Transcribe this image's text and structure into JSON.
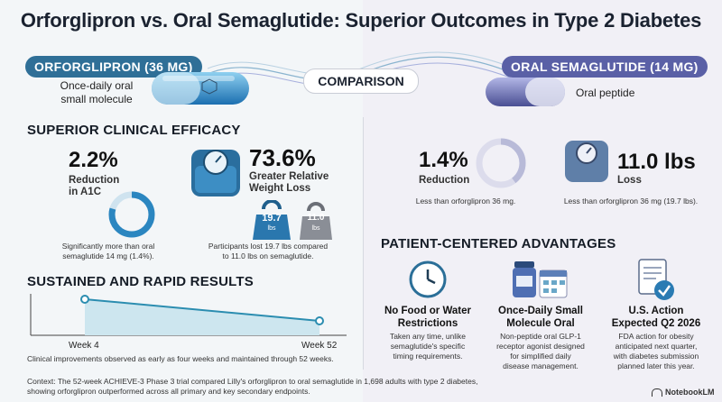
{
  "title": "Orforglipron vs. Oral Semaglutide: Superior Outcomes in Type 2 Diabetes",
  "left_drug": {
    "name": "ORFORGLIPRON (36 MG)",
    "desc_line1": "Once-daily oral",
    "desc_line2": "small molecule",
    "color": "#2f6f97"
  },
  "comparison_label": "COMPARISON",
  "right_drug": {
    "name": "ORAL SEMAGLUTIDE (14 MG)",
    "desc": "Oral peptide",
    "color": "#5a60a6"
  },
  "efficacy": {
    "heading": "SUPERIOR CLINICAL EFFICACY",
    "a1c": {
      "value": "2.2%",
      "label_line1": "Reduction",
      "label_line2": "in A1C",
      "note_line1": "Significantly more than oral",
      "note_line2": "semaglutide 14 mg (1.4%)."
    },
    "weight": {
      "value": "73.6%",
      "label_line1": "Greater Relative",
      "label_line2": "Weight Loss",
      "weight_a": "19.7",
      "weight_b": "11.0",
      "unit": "lbs",
      "note_line1": "Participants lost 19.7 lbs compared",
      "note_line2": "to 11.0 lbs on semaglutide."
    }
  },
  "right_stats": {
    "a1c": {
      "value": "1.4%",
      "label": "Reduction",
      "note": "Less than orforglipron 36 mg."
    },
    "weight": {
      "value": "11.0 lbs",
      "label": "Loss",
      "note": "Less than orforglipron 36 mg (19.7 lbs)."
    }
  },
  "sustained": {
    "heading": "SUSTAINED AND RAPID RESULTS",
    "week_start": "Week 4",
    "week_end": "Week 52",
    "note": "Clinical improvements observed as early as four weeks and maintained through 52 weeks."
  },
  "advantages": {
    "heading": "PATIENT-CENTERED ADVANTAGES",
    "cards": [
      {
        "title_line1": "No Food or Water",
        "title_line2": "Restrictions",
        "text_line1": "Taken any time, unlike",
        "text_line2": "semaglutide's specific",
        "text_line3": "timing requirements.",
        "icon": "clock-icon"
      },
      {
        "title_line1": "Once-Daily Small",
        "title_line2": "Molecule Oral",
        "text_line1": "Non-peptide oral GLP-1",
        "text_line2": "receptor agonist designed",
        "text_line3": "for simplified daily",
        "text_line4": "disease management.",
        "icon": "pill-bottle-calendar-icon"
      },
      {
        "title_line1": "U.S. Action",
        "title_line2": "Expected Q2 2026",
        "text_line1": "FDA action for obesity",
        "text_line2": "anticipated next quarter,",
        "text_line3": "with diabetes submission",
        "text_line4": "planned later this year.",
        "icon": "document-check-icon"
      }
    ]
  },
  "footer_line1": "Context: The 52-week ACHIEVE-3 Phase 3 trial compared Lilly's orforglipron to oral semaglutide in 1,698 adults with type 2 diabetes,",
  "footer_line2": "showing orforglipron outperformed across all primary and key secondary endpoints.",
  "brand": "NotebookLM"
}
